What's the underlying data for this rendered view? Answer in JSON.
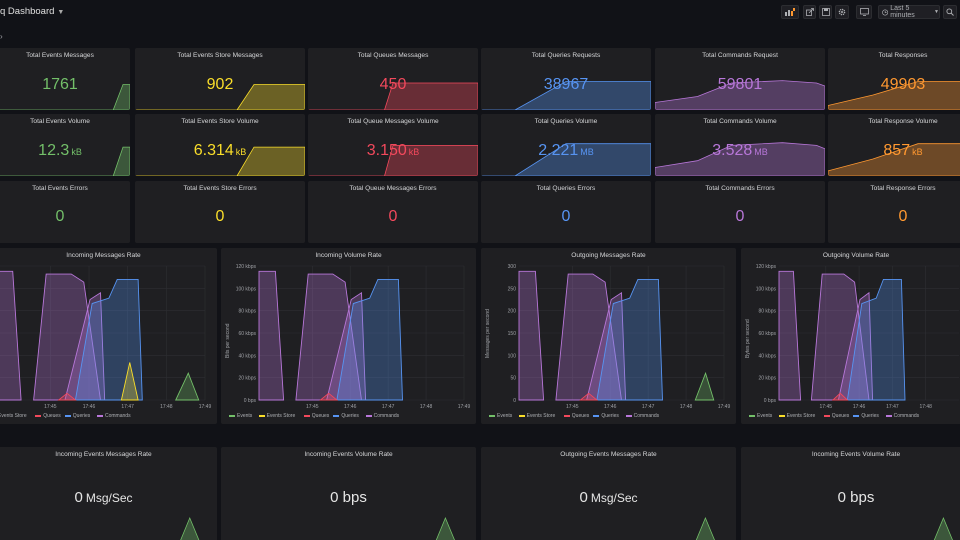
{
  "topbar": {
    "title": "q Dashboard",
    "time_range": "Last 5 minutes"
  },
  "icons": [
    "add-panel-icon",
    "share-icon",
    "save-icon",
    "settings-icon",
    "tv-mode-icon",
    "clock-icon",
    "zoom-icon"
  ],
  "colors": {
    "events": "#73bf69",
    "events_store": "#fade2a",
    "queues": "#f2495c",
    "queries": "#5794f2",
    "commands": "#b877d9",
    "responses": "#ff9830"
  },
  "stat_rows": [
    [
      {
        "title": "Total Events Messages",
        "value": "1761",
        "unit": "",
        "color": "#73bf69"
      },
      {
        "title": "Total Events Store Messages",
        "value": "902",
        "unit": "",
        "color": "#fade2a"
      },
      {
        "title": "Total Queues Messages",
        "value": "450",
        "unit": "",
        "color": "#f2495c"
      },
      {
        "title": "Total Queries Requests",
        "value": "38967",
        "unit": "",
        "color": "#5794f2"
      },
      {
        "title": "Total Commands Request",
        "value": "59801",
        "unit": "",
        "color": "#b877d9"
      },
      {
        "title": "Total Responses",
        "value": "49903",
        "unit": "",
        "color": "#ff9830"
      }
    ],
    [
      {
        "title": "Total Events Volume",
        "value": "12.3",
        "unit": "kB",
        "color": "#73bf69"
      },
      {
        "title": "Total Events Store Volume",
        "value": "6.314",
        "unit": "kB",
        "color": "#fade2a"
      },
      {
        "title": "Total Queue Messages Volume",
        "value": "3.150",
        "unit": "kB",
        "color": "#f2495c"
      },
      {
        "title": "Total Queries Volume",
        "value": "2.221",
        "unit": "MB",
        "color": "#5794f2"
      },
      {
        "title": "Total Commands Volume",
        "value": "3.528",
        "unit": "MB",
        "color": "#b877d9"
      },
      {
        "title": "Total Response Volume",
        "value": "857",
        "unit": "kB",
        "color": "#ff9830"
      }
    ],
    [
      {
        "title": "Total Events Errors",
        "value": "0",
        "unit": "",
        "color": "#73bf69"
      },
      {
        "title": "Total Events Store Errors",
        "value": "0",
        "unit": "",
        "color": "#fade2a"
      },
      {
        "title": "Total Queue Messages Errors",
        "value": "0",
        "unit": "",
        "color": "#f2495c"
      },
      {
        "title": "Total Queries Errors",
        "value": "0",
        "unit": "",
        "color": "#5794f2"
      },
      {
        "title": "Total Commands Errors",
        "value": "0",
        "unit": "",
        "color": "#b877d9"
      },
      {
        "title": "Total Response Errors",
        "value": "0",
        "unit": "",
        "color": "#ff9830"
      }
    ]
  ],
  "graphs": [
    {
      "title": "Incoming Messages Rate",
      "ylabel": "",
      "yticks": [],
      "xticks": [
        "17:45",
        "17:46",
        "17:47",
        "17:48",
        "17:49"
      ],
      "legend": [
        "Events Store",
        "Queues",
        "Queries",
        "Commands"
      ]
    },
    {
      "title": "Incoming Volume Rate",
      "ylabel": "Bits per second",
      "yticks": [
        "0 bps",
        "20 kbps",
        "40 kbps",
        "60 kbps",
        "80 kbps",
        "100 kbps",
        "120 kbps"
      ],
      "xticks": [
        "17:45",
        "17:46",
        "17:47",
        "17:48",
        "17:49"
      ],
      "legend": [
        "Events",
        "Events Store",
        "Queues",
        "Queries",
        "Commands"
      ]
    },
    {
      "title": "Outgoing Messages Rate",
      "ylabel": "Messages per second",
      "yticks": [
        "0",
        "50",
        "100",
        "150",
        "200",
        "250",
        "300"
      ],
      "xticks": [
        "17:45",
        "17:46",
        "17:47",
        "17:48",
        "17:49"
      ],
      "legend": [
        "Events",
        "Events Store",
        "Queues",
        "Queries",
        "Commands"
      ]
    },
    {
      "title": "Outgoing Volume Rate",
      "ylabel": "Bytes per second",
      "yticks": [
        "0 bps",
        "20 kbps",
        "40 kbps",
        "60 kbps",
        "80 kbps",
        "100 kbps",
        "120 kbps"
      ],
      "xticks": [
        "17:45",
        "17:46",
        "17:47",
        "17:48"
      ],
      "legend": [
        "Events",
        "Events Store",
        "Queues",
        "Queries",
        "Commands"
      ]
    }
  ],
  "bottom_panels": [
    {
      "title": "Incoming Events Messages Rate",
      "value": "0",
      "unit": "Msg/Sec"
    },
    {
      "title": "Incoming Events Volume Rate",
      "value": "0 bps",
      "unit": ""
    },
    {
      "title": "Outgoing Events Messages Rate",
      "value": "0",
      "unit": "Msg/Sec"
    },
    {
      "title": "Incoming Events Volume Rate",
      "value": "0 bps",
      "unit": ""
    }
  ]
}
